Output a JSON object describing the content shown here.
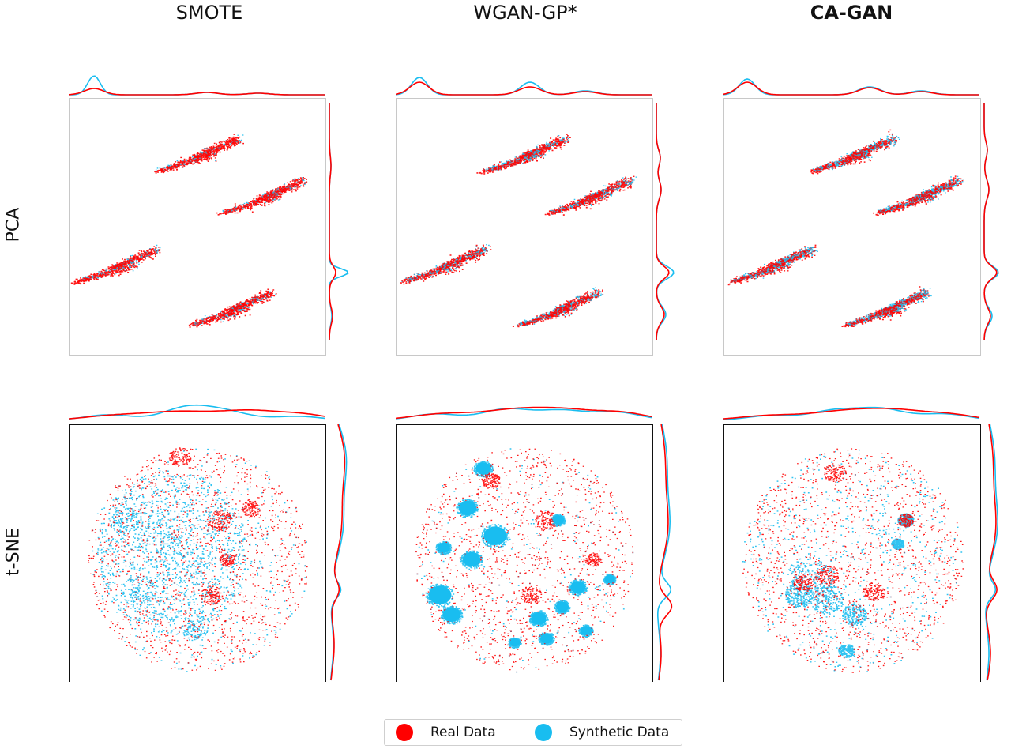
{
  "columns": [
    {
      "title": "SMOTE",
      "bold": false
    },
    {
      "title": "WGAN-GP*",
      "bold": false
    },
    {
      "title": "CA-GAN",
      "bold": true
    }
  ],
  "rows": [
    {
      "label": "PCA"
    },
    {
      "label": "t-SNE"
    }
  ],
  "legend": {
    "real_label": "Real Data",
    "synthetic_label": "Synthetic Data",
    "real_color": "#ff0000",
    "synthetic_color": "#19bdf0"
  },
  "chart_data": [
    {
      "type": "scatter",
      "title": "SMOTE",
      "ylabel": "PCA",
      "projection": "PCA",
      "axes_ticks": false,
      "grid": false,
      "series": [
        {
          "name": "Real Data",
          "color": "#ff0000"
        },
        {
          "name": "Synthetic Data",
          "color": "#19bdf0"
        }
      ],
      "marginals": "kde top and right"
    },
    {
      "type": "scatter",
      "title": "WGAN-GP*",
      "projection": "PCA",
      "axes_ticks": false,
      "grid": false,
      "series": [
        {
          "name": "Real Data",
          "color": "#ff0000"
        },
        {
          "name": "Synthetic Data",
          "color": "#19bdf0"
        }
      ],
      "marginals": "kde top and right"
    },
    {
      "type": "scatter",
      "title": "CA-GAN",
      "projection": "PCA",
      "axes_ticks": false,
      "grid": false,
      "series": [
        {
          "name": "Real Data",
          "color": "#ff0000"
        },
        {
          "name": "Synthetic Data",
          "color": "#19bdf0"
        }
      ],
      "marginals": "kde top and right"
    },
    {
      "type": "scatter",
      "title": "SMOTE",
      "ylabel": "t-SNE",
      "projection": "t-SNE",
      "axes_ticks": false,
      "grid": false,
      "series": [
        {
          "name": "Real Data",
          "color": "#ff0000"
        },
        {
          "name": "Synthetic Data",
          "color": "#19bdf0"
        }
      ],
      "marginals": "kde top and right"
    },
    {
      "type": "scatter",
      "title": "WGAN-GP*",
      "projection": "t-SNE",
      "axes_ticks": false,
      "grid": false,
      "series": [
        {
          "name": "Real Data",
          "color": "#ff0000"
        },
        {
          "name": "Synthetic Data",
          "color": "#19bdf0"
        }
      ],
      "marginals": "kde top and right"
    },
    {
      "type": "scatter",
      "title": "CA-GAN",
      "projection": "t-SNE",
      "axes_ticks": false,
      "grid": false,
      "series": [
        {
          "name": "Real Data",
          "color": "#ff0000"
        },
        {
          "name": "Synthetic Data",
          "color": "#19bdf0"
        }
      ],
      "marginals": "kde top and right"
    }
  ]
}
